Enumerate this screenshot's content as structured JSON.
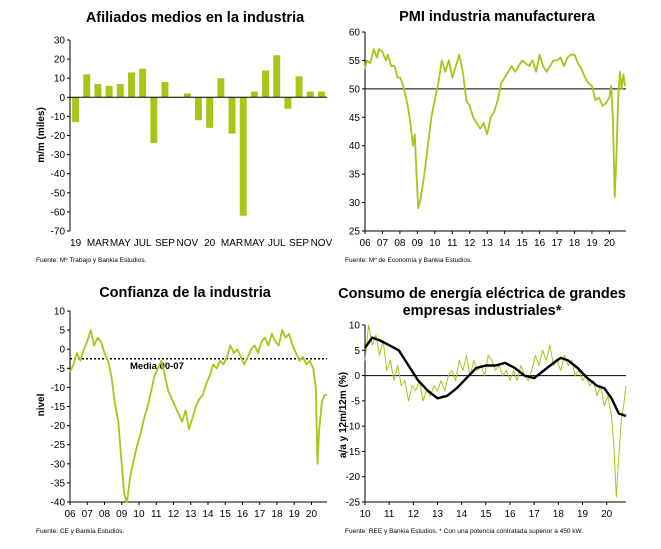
{
  "colors": {
    "accent": "#a6c618",
    "line_dark": "#000000",
    "axis": "#000000",
    "refline": "#000000"
  },
  "chart_data": [
    {
      "id": "afiliados",
      "type": "bar",
      "title": "Afiliados medios en la industria",
      "ylabel": "m/m (miles)",
      "ylim": [
        -70,
        30
      ],
      "yticks": [
        "30",
        "20",
        "10",
        "0",
        "-10",
        "-20",
        "-30",
        "-40",
        "-50",
        "-60",
        "-70"
      ],
      "xticks": [
        "19",
        "MAR",
        "MAY",
        "JUL",
        "SEP",
        "NOV",
        "20",
        "MAR",
        "MAY",
        "JUL",
        "SEP",
        "NOV"
      ],
      "values": [
        -13,
        12,
        7,
        6,
        7,
        13,
        15,
        -24,
        8,
        0,
        2,
        -12,
        -16,
        10,
        -19,
        -62,
        3,
        14,
        22,
        -6,
        11,
        3,
        3
      ],
      "source": "Fuente: Mº Trabajo y Bankia Estudios."
    },
    {
      "id": "pmi",
      "type": "line",
      "title": "PMI industria manufacturera",
      "ylabel": "",
      "ylim": [
        25,
        60
      ],
      "yticks": [
        "60",
        "55",
        "50",
        "45",
        "40",
        "35",
        "30",
        "25"
      ],
      "xticks": [
        "06",
        "07",
        "08",
        "09",
        "10",
        "11",
        "12",
        "13",
        "14",
        "15",
        "16",
        "17",
        "18",
        "19",
        "20"
      ],
      "x_start": 2006.0,
      "x_end": 2020.95,
      "reference_line": 50,
      "series": [
        {
          "name": "PMI",
          "x": [
            2006.0,
            2006.1,
            2006.3,
            2006.5,
            2006.7,
            2006.8,
            2007.0,
            2007.2,
            2007.3,
            2007.5,
            2007.7,
            2007.85,
            2008.0,
            2008.15,
            2008.3,
            2008.45,
            2008.6,
            2008.75,
            2008.85,
            2008.95,
            2009.05,
            2009.2,
            2009.4,
            2009.6,
            2009.8,
            2010.0,
            2010.2,
            2010.4,
            2010.6,
            2010.8,
            2011.0,
            2011.2,
            2011.4,
            2011.6,
            2011.8,
            2012.0,
            2012.2,
            2012.4,
            2012.6,
            2012.8,
            2013.0,
            2013.2,
            2013.4,
            2013.6,
            2013.8,
            2014.0,
            2014.2,
            2014.4,
            2014.6,
            2014.8,
            2015.0,
            2015.2,
            2015.4,
            2015.6,
            2015.8,
            2016.0,
            2016.2,
            2016.4,
            2016.6,
            2016.8,
            2017.0,
            2017.2,
            2017.4,
            2017.6,
            2017.8,
            2018.0,
            2018.2,
            2018.4,
            2018.6,
            2018.8,
            2019.0,
            2019.2,
            2019.4,
            2019.6,
            2019.8,
            2020.0,
            2020.1,
            2020.2,
            2020.3,
            2020.4,
            2020.5,
            2020.6,
            2020.7,
            2020.8,
            2020.9
          ],
          "y": [
            53.5,
            55,
            54.5,
            57,
            55.5,
            57,
            56.5,
            55,
            56,
            54,
            54,
            52,
            52,
            51,
            49,
            47,
            44,
            40,
            42,
            35,
            29,
            31,
            35,
            40,
            45,
            48,
            51,
            55,
            53,
            55,
            52,
            54,
            56,
            53,
            48,
            47,
            45,
            44,
            43,
            44,
            42,
            45,
            46,
            48,
            51,
            52,
            53,
            54,
            53,
            54,
            55,
            54.5,
            54,
            55,
            53,
            56,
            54,
            53,
            54,
            55,
            55,
            55.5,
            54,
            55.5,
            56,
            56,
            54.5,
            53.5,
            52,
            51,
            50.5,
            48,
            48.5,
            47,
            47.5,
            48.5,
            50.5,
            45,
            31,
            38,
            48,
            53,
            50,
            52.5,
            50.5
          ]
        }
      ],
      "source": "Fuente: Mº de Economía y Bankia Estudios."
    },
    {
      "id": "confianza",
      "type": "line",
      "title": "Confianza de la industria",
      "ylabel": "nivel",
      "ylim": [
        -40,
        10
      ],
      "yticks": [
        "10",
        "5",
        "0",
        "-5",
        "-10",
        "-15",
        "-20",
        "-25",
        "-30",
        "-35",
        "-40"
      ],
      "xticks": [
        "06",
        "07",
        "08",
        "09",
        "10",
        "11",
        "12",
        "13",
        "14",
        "15",
        "16",
        "17",
        "18",
        "19",
        "20"
      ],
      "x_start": 2006.0,
      "x_end": 2020.9,
      "reference_line": -2.5,
      "annotation": "Media 00-07",
      "series": [
        {
          "name": "Confianza",
          "x": [
            2006.0,
            2006.2,
            2006.4,
            2006.6,
            2006.8,
            2007.0,
            2007.2,
            2007.4,
            2007.6,
            2007.8,
            2008.0,
            2008.2,
            2008.4,
            2008.6,
            2008.8,
            2009.0,
            2009.15,
            2009.3,
            2009.5,
            2009.7,
            2009.9,
            2010.1,
            2010.3,
            2010.5,
            2010.7,
            2010.9,
            2011.1,
            2011.3,
            2011.5,
            2011.7,
            2011.9,
            2012.1,
            2012.3,
            2012.5,
            2012.7,
            2012.9,
            2013.1,
            2013.3,
            2013.5,
            2013.7,
            2013.9,
            2014.1,
            2014.3,
            2014.5,
            2014.7,
            2014.9,
            2015.1,
            2015.3,
            2015.5,
            2015.7,
            2015.9,
            2016.1,
            2016.3,
            2016.5,
            2016.7,
            2016.9,
            2017.1,
            2017.3,
            2017.5,
            2017.7,
            2017.9,
            2018.1,
            2018.3,
            2018.5,
            2018.7,
            2018.9,
            2019.1,
            2019.3,
            2019.5,
            2019.7,
            2019.9,
            2020.1,
            2020.25,
            2020.35,
            2020.45,
            2020.6,
            2020.75,
            2020.9
          ],
          "y": [
            -6,
            -4,
            -1,
            -3,
            0,
            2,
            5,
            1,
            3,
            2,
            -1,
            -3,
            -7,
            -14,
            -19,
            -30,
            -38,
            -40,
            -33,
            -29,
            -25,
            -22,
            -18,
            -15,
            -11,
            -7,
            -5,
            -3,
            -7,
            -11,
            -13,
            -15,
            -17,
            -19,
            -16,
            -21,
            -18,
            -15,
            -13,
            -12,
            -9,
            -7,
            -4,
            -5,
            -3,
            -4,
            -2,
            1,
            -1,
            0,
            -2,
            -4,
            -2,
            0,
            1,
            -1,
            2,
            3,
            1,
            4,
            2,
            1,
            5,
            3,
            4,
            1,
            -1,
            -3,
            -2,
            -4,
            -3,
            -5,
            -10,
            -30,
            -21,
            -14,
            -12,
            -12
          ]
        }
      ],
      "source": "Fuente: CE y Bankia Estudios."
    },
    {
      "id": "energia",
      "type": "line",
      "title": "Consumo de energía eléctrica de grandes empresas industriales*",
      "title_lines": [
        "Consumo de energía eléctrica de grandes",
        "empresas industriales*"
      ],
      "ylabel": "a/a y 12m/12m (%)",
      "ylim": [
        -25,
        10
      ],
      "yticks": [
        "10",
        "5",
        "0",
        "-5",
        "-10",
        "-15",
        "-20",
        "-25"
      ],
      "xticks": [
        "10",
        "11",
        "12",
        "13",
        "14",
        "15",
        "16",
        "17",
        "18",
        "19",
        "20"
      ],
      "x_start": 2010.0,
      "x_end": 2020.8,
      "reference_line": 0,
      "series": [
        {
          "name": "a/a",
          "color_key": "accent",
          "x": [
            2010.0,
            2010.15,
            2010.3,
            2010.45,
            2010.6,
            2010.75,
            2010.9,
            2011.05,
            2011.2,
            2011.35,
            2011.5,
            2011.65,
            2011.8,
            2011.95,
            2012.1,
            2012.25,
            2012.4,
            2012.55,
            2012.7,
            2012.85,
            2013.0,
            2013.15,
            2013.3,
            2013.45,
            2013.6,
            2013.75,
            2013.9,
            2014.05,
            2014.2,
            2014.35,
            2014.5,
            2014.65,
            2014.8,
            2014.95,
            2015.1,
            2015.25,
            2015.4,
            2015.55,
            2015.7,
            2015.85,
            2016.0,
            2016.15,
            2016.3,
            2016.45,
            2016.6,
            2016.75,
            2016.9,
            2017.05,
            2017.2,
            2017.35,
            2017.5,
            2017.65,
            2017.8,
            2017.95,
            2018.1,
            2018.25,
            2018.4,
            2018.55,
            2018.7,
            2018.85,
            2019.0,
            2019.15,
            2019.3,
            2019.45,
            2019.6,
            2019.75,
            2019.9,
            2020.05,
            2020.2,
            2020.3,
            2020.4,
            2020.5,
            2020.6,
            2020.7,
            2020.8
          ],
          "y": [
            3,
            10,
            6,
            8,
            4,
            7,
            1,
            3,
            -1,
            2,
            -2,
            -1,
            -5,
            -2,
            -3,
            -1,
            -5,
            -3,
            -4,
            -2,
            -3,
            -1,
            -3,
            0,
            1,
            -1,
            3,
            1,
            4,
            0,
            3,
            1,
            2,
            0,
            4,
            3,
            1,
            2,
            0,
            1,
            -1,
            1,
            -1,
            2,
            0,
            -1,
            1,
            4,
            2,
            5,
            3,
            6,
            2,
            3,
            1,
            4,
            2,
            3,
            0,
            1,
            -1,
            0,
            -2,
            -1,
            -4,
            -2,
            -6,
            -4,
            -8,
            -14,
            -24,
            -16,
            -9,
            -6,
            -2
          ]
        },
        {
          "name": "12m/12m",
          "color_key": "line_dark",
          "x": [
            2010.0,
            2010.3,
            2010.6,
            2011.0,
            2011.4,
            2011.8,
            2012.2,
            2012.6,
            2013.0,
            2013.4,
            2013.8,
            2014.2,
            2014.6,
            2015.0,
            2015.4,
            2015.8,
            2016.2,
            2016.6,
            2017.0,
            2017.4,
            2017.8,
            2018.1,
            2018.4,
            2018.8,
            2019.2,
            2019.6,
            2019.9,
            2020.2,
            2020.5,
            2020.8
          ],
          "y": [
            5.5,
            7.5,
            7,
            6,
            5,
            2,
            -1,
            -3,
            -4.5,
            -4,
            -2.5,
            -0.5,
            1.5,
            2,
            2,
            2.5,
            1.5,
            0,
            -0.5,
            1,
            2.5,
            3.5,
            3,
            1.5,
            -0.5,
            -2,
            -2.5,
            -4.5,
            -7.5,
            -8
          ]
        }
      ],
      "source": "Fuente: REE y Bankia Estudios. * Con una potencia contratada superior a 450 kW."
    }
  ]
}
